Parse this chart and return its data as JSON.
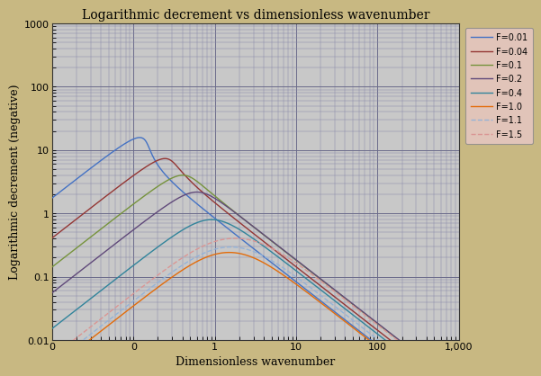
{
  "title": "Logarithmic decrement vs dimensionless wavenumber",
  "xlabel": "Dimensionless wavenumber",
  "ylabel": "Logarithmic decrement (negative)",
  "froude_numbers": [
    0.01,
    0.04,
    0.1,
    0.2,
    0.4,
    1.0,
    1.1,
    1.5
  ],
  "colors": [
    "#4472C4",
    "#943634",
    "#76933C",
    "#60497A",
    "#31849B",
    "#E36C0A",
    "#95B3D7",
    "#DA9694"
  ],
  "legend_labels": [
    "F=0.01",
    "F=0.04",
    "F=0.1",
    "F=0.2",
    "F=0.4",
    "F=1.0",
    "F=1.1",
    "F=1.5"
  ],
  "dashed": [
    false,
    false,
    false,
    false,
    false,
    false,
    true,
    true
  ],
  "bg_color": "#C8C8C8",
  "outer_bg": "#C8B882",
  "legend_bg": "#E8C8C8",
  "xlim": [
    0.01,
    1000
  ],
  "ylim": [
    0.01,
    1000
  ],
  "xticks": [
    0.01,
    0.1,
    1,
    10,
    100,
    1000
  ],
  "xtick_labels": [
    "0",
    "0",
    "1",
    "10",
    "100",
    "1,000"
  ],
  "yticks": [
    0.01,
    0.1,
    1,
    10,
    100,
    1000
  ],
  "ytick_labels": [
    "0.01",
    "0.1",
    "1",
    "10",
    "100",
    "1000"
  ],
  "title_fontsize": 10,
  "axis_fontsize": 8,
  "legend_fontsize": 7
}
